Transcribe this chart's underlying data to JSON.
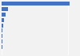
{
  "values": [
    2033.0,
    190.0,
    110.0,
    68.0,
    42.0,
    28.0,
    20.0,
    15.0,
    12.0,
    9.0
  ],
  "bar_color": "#4472c4",
  "background_color": "#f2f2f2",
  "xlim": [
    0,
    2300
  ],
  "grid_color": "#ffffff",
  "bar_height": 0.75,
  "n_bars": 10
}
